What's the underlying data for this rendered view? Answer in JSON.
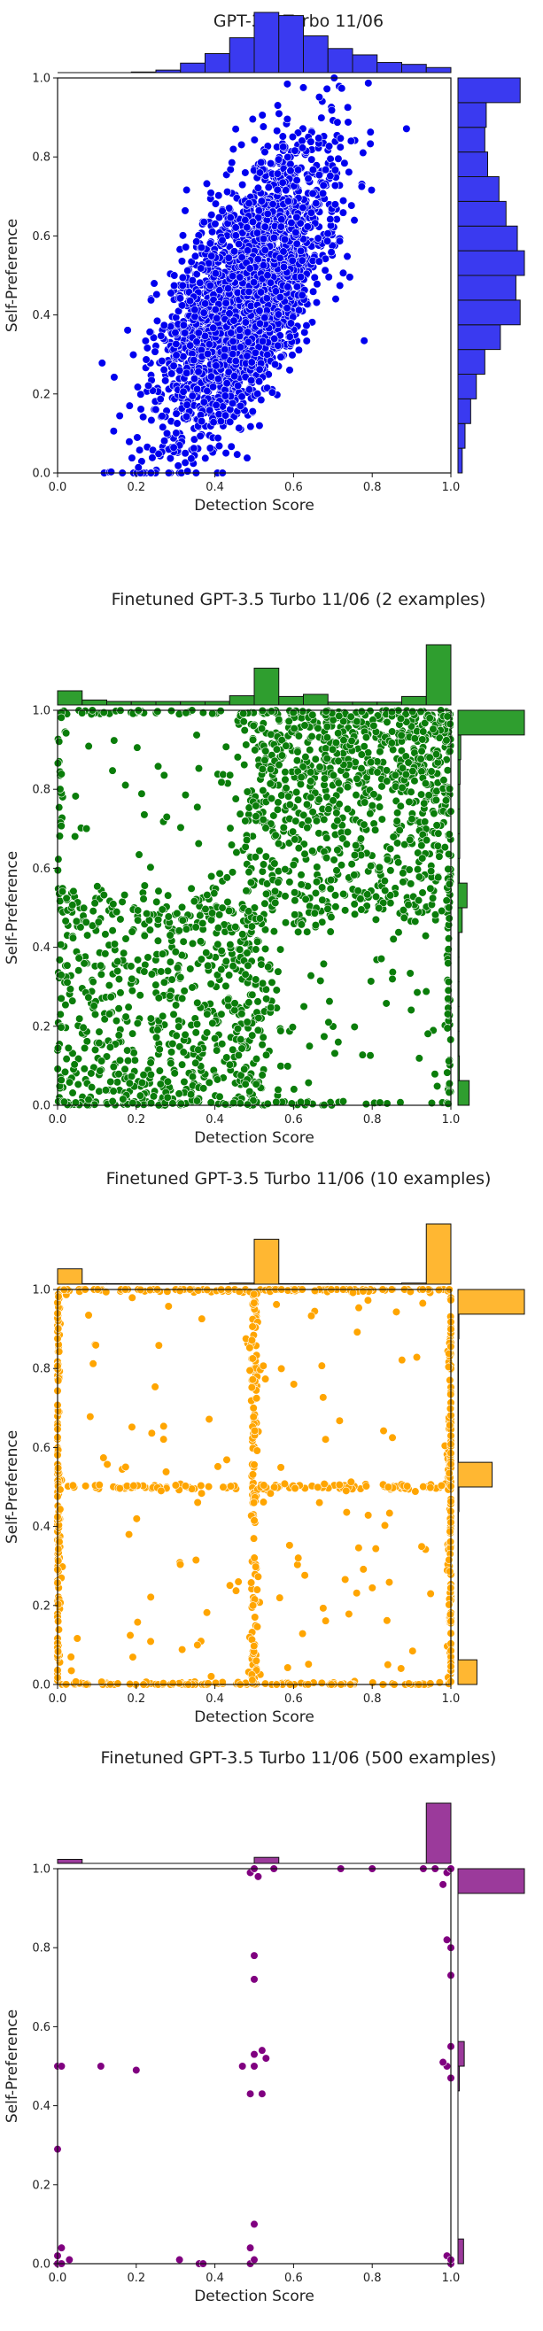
{
  "chart_data": [
    {
      "type": "scatter",
      "title": "GPT-3.5 Turbo 11/06",
      "xlabel": "Detection Score",
      "ylabel": "Self-Preference",
      "xlim": [
        0,
        1
      ],
      "ylim": [
        0,
        1
      ],
      "xticks": [
        "0.0",
        "0.2",
        "0.4",
        "0.6",
        "0.8",
        "1.0"
      ],
      "yticks": [
        "0.0",
        "0.2",
        "0.4",
        "0.6",
        "0.8",
        "1.0"
      ],
      "color": "#0000ee",
      "hist_color": "#3a3af0",
      "marginal_x": {
        "bin_edges": [
          0.0,
          0.0625,
          0.125,
          0.1875,
          0.25,
          0.3125,
          0.375,
          0.4375,
          0.5,
          0.5625,
          0.625,
          0.6875,
          0.75,
          0.8125,
          0.875,
          0.9375,
          1.0
        ],
        "counts": [
          0,
          0,
          0,
          1,
          4,
          15,
          30,
          55,
          95,
          90,
          58,
          38,
          28,
          16,
          13,
          8
        ]
      },
      "marginal_y": {
        "bin_edges": [
          0.0,
          0.0625,
          0.125,
          0.1875,
          0.25,
          0.3125,
          0.375,
          0.4375,
          0.5,
          0.5625,
          0.625,
          0.6875,
          0.75,
          0.8125,
          0.875,
          0.9375,
          1.0
        ],
        "counts": [
          6,
          10,
          18,
          26,
          38,
          60,
          88,
          82,
          94,
          84,
          68,
          58,
          42,
          38,
          40,
          88
        ]
      },
      "cloud": {
        "n": 2600,
        "seed": 11,
        "mode": "gauss",
        "x_mean": 0.48,
        "x_sd": 0.11,
        "slope": 1.05,
        "intercept": -0.05,
        "y_sd": 0.14
      },
      "points": []
    },
    {
      "type": "scatter",
      "title": "Finetuned GPT-3.5 Turbo 11/06 (2 examples)",
      "xlabel": "Detection Score",
      "ylabel": "Self-Preference",
      "xlim": [
        0,
        1
      ],
      "ylim": [
        0,
        1
      ],
      "xticks": [
        "0.0",
        "0.2",
        "0.4",
        "0.6",
        "0.8",
        "1.0"
      ],
      "yticks": [
        "0.0",
        "0.2",
        "0.4",
        "0.6",
        "0.8",
        "1.0"
      ],
      "color": "#0a7d0a",
      "hist_color": "#2f9e2f",
      "marginal_x": {
        "bin_edges": [
          0.0,
          0.0625,
          0.125,
          0.1875,
          0.25,
          0.3125,
          0.375,
          0.4375,
          0.5,
          0.5625,
          0.625,
          0.6875,
          0.75,
          0.8125,
          0.875,
          0.9375,
          1.0
        ],
        "counts": [
          20,
          7,
          5,
          5,
          5,
          5,
          5,
          13,
          52,
          12,
          15,
          4,
          4,
          4,
          12,
          85
        ]
      },
      "marginal_y": {
        "bin_edges": [
          0.0,
          0.0625,
          0.125,
          0.1875,
          0.25,
          0.3125,
          0.375,
          0.4375,
          0.5,
          0.5625,
          0.625,
          0.6875,
          0.75,
          0.8125,
          0.875,
          0.9375,
          1.0
        ],
        "counts": [
          32,
          4,
          3,
          3,
          3,
          3,
          3,
          12,
          26,
          4,
          5,
          5,
          5,
          6,
          8,
          190
        ]
      },
      "cloud": {
        "n": 2000,
        "seed": 23,
        "mode": "cross",
        "line_y": 0.5,
        "line_x": 0.5,
        "spread_line": 0.03,
        "upper_right": 0.38,
        "lower_left": 0.22,
        "edge": 0.12
      },
      "points": []
    },
    {
      "type": "scatter",
      "title": "Finetuned GPT-3.5 Turbo 11/06 (10 examples)",
      "xlabel": "Detection Score",
      "ylabel": "Self-Preference",
      "xlim": [
        0,
        1
      ],
      "ylim": [
        0,
        1
      ],
      "xticks": [
        "0.0",
        "0.2",
        "0.4",
        "0.6",
        "0.8",
        "1.0"
      ],
      "yticks": [
        "0.0",
        "0.2",
        "0.4",
        "0.6",
        "0.8",
        "1.0"
      ],
      "color": "#ffa500",
      "hist_color": "#ffb732",
      "marginal_x": {
        "bin_edges": [
          0.0,
          0.0625,
          0.125,
          0.1875,
          0.25,
          0.3125,
          0.375,
          0.4375,
          0.5,
          0.5625,
          0.625,
          0.6875,
          0.75,
          0.8125,
          0.875,
          0.9375,
          1.0
        ],
        "counts": [
          28,
          1,
          1,
          1,
          1,
          1,
          1,
          2,
          82,
          1,
          1,
          1,
          1,
          1,
          2,
          110
        ]
      },
      "marginal_y": {
        "bin_edges": [
          0.0,
          0.0625,
          0.125,
          0.1875,
          0.25,
          0.3125,
          0.375,
          0.4375,
          0.5,
          0.5625,
          0.625,
          0.6875,
          0.75,
          0.8125,
          0.875,
          0.9375,
          1.0
        ],
        "counts": [
          40,
          1,
          1,
          1,
          1,
          1,
          1,
          2,
          72,
          1,
          1,
          1,
          1,
          1,
          2,
          140
        ]
      },
      "cloud": {
        "n": 900,
        "seed": 37,
        "mode": "grid",
        "scatter_frac": 0.12
      },
      "points": []
    },
    {
      "type": "scatter",
      "title": "Finetuned GPT-3.5 Turbo 11/06 (500 examples)",
      "xlabel": "Detection Score",
      "ylabel": "Self-Preference",
      "xlim": [
        0,
        1
      ],
      "ylim": [
        0,
        1
      ],
      "xticks": [
        "0.0",
        "0.2",
        "0.4",
        "0.6",
        "0.8",
        "1.0"
      ],
      "yticks": [
        "0.0",
        "0.2",
        "0.4",
        "0.6",
        "0.8",
        "1.0"
      ],
      "color": "#800080",
      "hist_color": "#9b3a9b",
      "marginal_x": {
        "bin_edges": [
          0.0,
          0.0625,
          0.125,
          0.1875,
          0.25,
          0.3125,
          0.375,
          0.4375,
          0.5,
          0.5625,
          0.625,
          0.6875,
          0.75,
          0.8125,
          0.875,
          0.9375,
          1.0
        ],
        "counts": [
          4,
          0,
          0,
          0,
          0,
          0,
          0,
          0,
          6,
          0,
          0,
          0,
          0,
          0,
          0,
          60
        ]
      },
      "marginal_y": {
        "bin_edges": [
          0.0,
          0.0625,
          0.125,
          0.1875,
          0.25,
          0.3125,
          0.375,
          0.4375,
          0.5,
          0.5625,
          0.625,
          0.6875,
          0.75,
          0.8125,
          0.875,
          0.9375,
          1.0
        ],
        "counts": [
          8,
          0,
          0,
          0,
          0,
          0,
          0,
          2,
          9,
          0,
          0,
          0,
          0,
          0,
          0,
          95
        ]
      },
      "cloud": {
        "n": 0,
        "seed": 0,
        "mode": "none"
      },
      "points": [
        [
          0.0,
          0.0
        ],
        [
          0.01,
          0.0
        ],
        [
          0.0,
          0.02
        ],
        [
          0.01,
          0.04
        ],
        [
          0.03,
          0.01
        ],
        [
          0.0,
          0.29
        ],
        [
          0.0,
          0.5
        ],
        [
          0.01,
          0.5
        ],
        [
          0.11,
          0.5
        ],
        [
          0.2,
          0.49
        ],
        [
          0.31,
          0.01
        ],
        [
          0.36,
          0.0
        ],
        [
          0.37,
          0.0
        ],
        [
          0.49,
          0.0
        ],
        [
          0.5,
          0.01
        ],
        [
          0.49,
          0.04
        ],
        [
          0.5,
          0.1
        ],
        [
          0.49,
          0.43
        ],
        [
          0.52,
          0.43
        ],
        [
          0.47,
          0.5
        ],
        [
          0.5,
          0.5
        ],
        [
          0.53,
          0.52
        ],
        [
          0.5,
          0.53
        ],
        [
          0.52,
          0.54
        ],
        [
          0.5,
          0.72
        ],
        [
          0.5,
          0.78
        ],
        [
          0.49,
          0.99
        ],
        [
          0.5,
          1.0
        ],
        [
          0.51,
          0.98
        ],
        [
          0.55,
          1.0
        ],
        [
          0.72,
          1.0
        ],
        [
          0.8,
          1.0
        ],
        [
          0.93,
          1.0
        ],
        [
          0.96,
          1.0
        ],
        [
          0.99,
          0.99
        ],
        [
          1.0,
          1.0
        ],
        [
          0.98,
          0.96
        ],
        [
          1.0,
          0.8
        ],
        [
          0.99,
          0.82
        ],
        [
          1.0,
          0.73
        ],
        [
          1.0,
          0.55
        ],
        [
          0.99,
          0.5
        ],
        [
          1.0,
          0.47
        ],
        [
          0.98,
          0.51
        ],
        [
          1.0,
          0.0
        ],
        [
          0.99,
          0.02
        ],
        [
          1.0,
          0.01
        ]
      ]
    }
  ]
}
